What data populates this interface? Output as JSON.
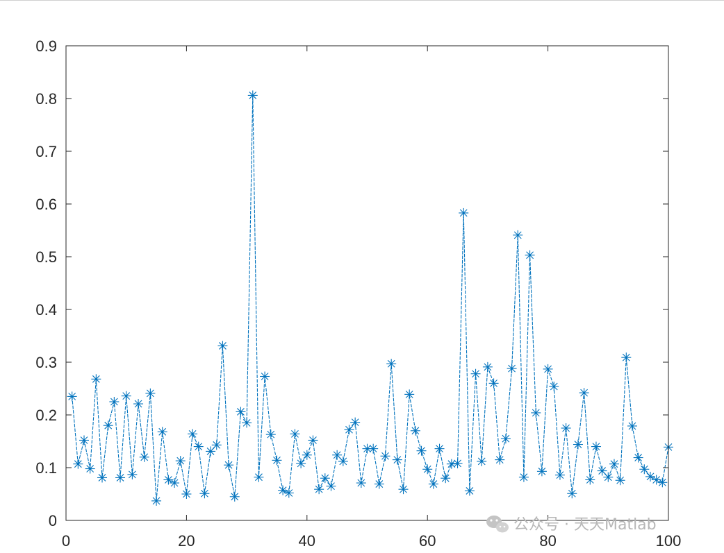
{
  "chart_data": {
    "type": "line",
    "marker": "asterisk",
    "line_style": "dashed",
    "color": "#0072BD",
    "title": "",
    "xlabel": "",
    "ylabel": "",
    "xlim": [
      0,
      100
    ],
    "ylim": [
      0,
      0.9
    ],
    "xticks": [
      0,
      20,
      40,
      60,
      80,
      100
    ],
    "yticks": [
      0,
      0.1,
      0.2,
      0.3,
      0.4,
      0.5,
      0.6,
      0.7,
      0.8,
      0.9
    ],
    "grid": false,
    "x": [
      1,
      2,
      3,
      4,
      5,
      6,
      7,
      8,
      9,
      10,
      11,
      12,
      13,
      14,
      15,
      16,
      17,
      18,
      19,
      20,
      21,
      22,
      23,
      24,
      25,
      26,
      27,
      28,
      29,
      30,
      31,
      32,
      33,
      34,
      35,
      36,
      37,
      38,
      39,
      40,
      41,
      42,
      43,
      44,
      45,
      46,
      47,
      48,
      49,
      50,
      51,
      52,
      53,
      54,
      55,
      56,
      57,
      58,
      59,
      60,
      61,
      62,
      63,
      64,
      65,
      66,
      67,
      68,
      69,
      70,
      71,
      72,
      73,
      74,
      75,
      76,
      77,
      78,
      79,
      80,
      81,
      82,
      83,
      84,
      85,
      86,
      87,
      88,
      89,
      90,
      91,
      92,
      93,
      94,
      95,
      96,
      97,
      98,
      99,
      100
    ],
    "y": [
      0.235,
      0.107,
      0.152,
      0.098,
      0.268,
      0.081,
      0.18,
      0.225,
      0.081,
      0.236,
      0.087,
      0.221,
      0.12,
      0.241,
      0.037,
      0.168,
      0.077,
      0.071,
      0.113,
      0.05,
      0.164,
      0.14,
      0.051,
      0.131,
      0.143,
      0.331,
      0.105,
      0.045,
      0.206,
      0.185,
      0.806,
      0.082,
      0.273,
      0.163,
      0.114,
      0.057,
      0.052,
      0.164,
      0.108,
      0.124,
      0.152,
      0.059,
      0.08,
      0.065,
      0.124,
      0.112,
      0.172,
      0.186,
      0.071,
      0.136,
      0.136,
      0.069,
      0.122,
      0.297,
      0.115,
      0.059,
      0.239,
      0.17,
      0.132,
      0.097,
      0.069,
      0.136,
      0.08,
      0.107,
      0.108,
      0.583,
      0.056,
      0.278,
      0.112,
      0.291,
      0.26,
      0.115,
      0.155,
      0.288,
      0.541,
      0.082,
      0.503,
      0.204,
      0.093,
      0.287,
      0.254,
      0.086,
      0.175,
      0.051,
      0.144,
      0.242,
      0.077,
      0.14,
      0.094,
      0.082,
      0.107,
      0.076,
      0.309,
      0.179,
      0.119,
      0.097,
      0.083,
      0.077,
      0.072,
      0.139
    ]
  },
  "watermark": {
    "text": "公众号 · 天天Matlab",
    "icon": "wechat-icon",
    "color": "#b7b7b7"
  }
}
